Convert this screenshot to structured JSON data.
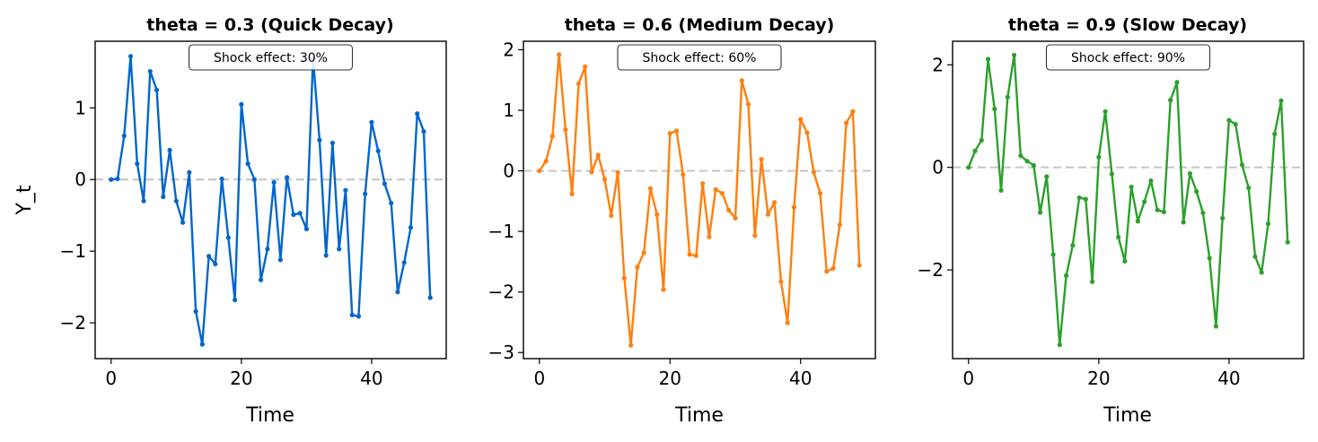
{
  "figure": {
    "ylabel": "Y_t",
    "xlabel": "Time"
  },
  "chart_data": [
    {
      "type": "line",
      "title": "theta = 0.3 (Quick Decay)",
      "annotation": "Shock effect: 30%",
      "xlabel": "Time",
      "ylabel": "Y_t",
      "color": "#0066cc",
      "xlim": [
        -2.45,
        51.45
      ],
      "ylim": [
        -2.5,
        1.93
      ],
      "xticks": [
        0,
        20,
        40
      ],
      "yticks": [
        -2,
        -1,
        0,
        1
      ],
      "hline": 0,
      "x": [
        0,
        1,
        2,
        3,
        4,
        5,
        6,
        7,
        8,
        9,
        10,
        11,
        12,
        13,
        14,
        15,
        16,
        17,
        18,
        19,
        20,
        21,
        22,
        23,
        24,
        25,
        26,
        27,
        28,
        29,
        30,
        31,
        32,
        33,
        34,
        35,
        36,
        37,
        38,
        39,
        40,
        41,
        42,
        43,
        44,
        45,
        46,
        47,
        48,
        49
      ],
      "values": [
        0,
        0.01,
        0.61,
        1.72,
        0.22,
        -0.3,
        1.51,
        1.25,
        -0.24,
        0.41,
        -0.3,
        -0.6,
        0.1,
        -1.84,
        -2.3,
        -1.07,
        -1.18,
        0.01,
        -0.81,
        -1.68,
        1.05,
        0.22,
        0.0,
        -1.4,
        -0.97,
        -0.04,
        -1.12,
        0.03,
        -0.49,
        -0.47,
        -0.69,
        1.69,
        0.55,
        -1.06,
        0.51,
        -0.97,
        -0.15,
        -1.89,
        -1.91,
        -0.2,
        0.8,
        0.4,
        -0.06,
        -0.33,
        -1.57,
        -1.16,
        -0.67,
        0.92,
        0.67,
        -1.65
      ]
    },
    {
      "type": "line",
      "title": "theta = 0.6 (Medium Decay)",
      "annotation": "Shock effect: 60%",
      "xlabel": "Time",
      "ylabel": "",
      "color": "#ff7f0e",
      "xlim": [
        -2.45,
        51.45
      ],
      "ylim": [
        -3.1,
        2.14
      ],
      "xticks": [
        0,
        20,
        40
      ],
      "yticks": [
        -3,
        -2,
        -1,
        0,
        1,
        2
      ],
      "hline": 0,
      "x": [
        0,
        1,
        2,
        3,
        4,
        5,
        6,
        7,
        8,
        9,
        10,
        11,
        12,
        13,
        14,
        15,
        16,
        17,
        18,
        19,
        20,
        21,
        22,
        23,
        24,
        25,
        26,
        27,
        28,
        29,
        30,
        31,
        32,
        33,
        34,
        35,
        36,
        37,
        38,
        39,
        40,
        41,
        42,
        43,
        44,
        45,
        46,
        47,
        48,
        49
      ],
      "values": [
        0,
        0.16,
        0.57,
        1.92,
        0.68,
        -0.38,
        1.44,
        1.72,
        -0.02,
        0.26,
        -0.14,
        -0.74,
        -0.03,
        -1.77,
        -2.88,
        -1.59,
        -1.35,
        -0.29,
        -0.72,
        -1.96,
        0.62,
        0.66,
        -0.06,
        -1.38,
        -1.4,
        -0.21,
        -1.09,
        -0.31,
        -0.37,
        -0.65,
        -0.78,
        1.49,
        1.1,
        -1.07,
        0.19,
        -0.72,
        -0.52,
        -1.83,
        -2.51,
        -0.6,
        0.85,
        0.63,
        -0.02,
        -0.37,
        -1.66,
        -1.61,
        -0.89,
        0.79,
        0.98,
        -1.56
      ]
    },
    {
      "type": "line",
      "title": "theta = 0.9 (Slow Decay)",
      "annotation": "Shock effect: 90%",
      "xlabel": "Time",
      "ylabel": "",
      "color": "#2ca02c",
      "xlim": [
        -2.45,
        51.45
      ],
      "ylim": [
        -3.73,
        2.46
      ],
      "xticks": [
        0,
        20,
        40
      ],
      "yticks": [
        -2,
        0,
        2
      ],
      "hline": 0,
      "x": [
        0,
        1,
        2,
        3,
        4,
        5,
        6,
        7,
        8,
        9,
        10,
        11,
        12,
        13,
        14,
        15,
        16,
        17,
        18,
        19,
        20,
        21,
        22,
        23,
        24,
        25,
        26,
        27,
        28,
        29,
        30,
        31,
        32,
        33,
        34,
        35,
        36,
        37,
        38,
        39,
        40,
        41,
        42,
        43,
        44,
        45,
        46,
        47,
        48,
        49
      ],
      "values": [
        0,
        0.32,
        0.53,
        2.11,
        1.14,
        -0.45,
        1.37,
        2.19,
        0.23,
        0.12,
        0.04,
        -0.88,
        -0.18,
        -1.7,
        -3.46,
        -2.11,
        -1.52,
        -0.59,
        -0.62,
        -2.23,
        0.2,
        1.09,
        -0.13,
        -1.36,
        -1.83,
        -0.38,
        -1.05,
        -0.67,
        -0.26,
        -0.83,
        -0.87,
        1.31,
        1.66,
        -1.07,
        -0.12,
        -0.47,
        -0.89,
        -1.77,
        -3.1,
        -0.99,
        0.92,
        0.84,
        0.05,
        -0.4,
        -1.74,
        -2.05,
        -1.1,
        0.65,
        1.3,
        -1.46
      ]
    }
  ]
}
